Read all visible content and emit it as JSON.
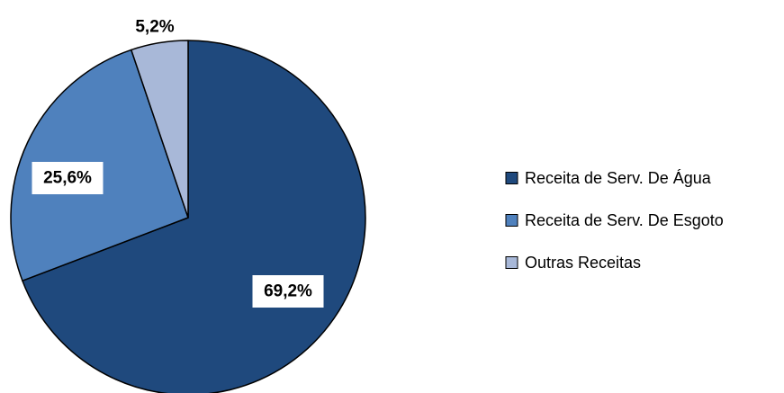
{
  "chart_data": {
    "type": "pie",
    "title": "",
    "start_angle_deg": 0,
    "direction": "clockwise",
    "legend_position": "right",
    "slices": [
      {
        "label": "Receita de Serv. De Água",
        "value": 69.2,
        "display": "69,2%",
        "color": "#1f497d"
      },
      {
        "label": "Receita de Serv. De Esgoto",
        "value": 25.6,
        "display": "25,6%",
        "color": "#4f81bd"
      },
      {
        "label": "Outras Receitas",
        "value": 5.2,
        "display": "5,2%",
        "color": "#a8b8d8"
      }
    ]
  }
}
